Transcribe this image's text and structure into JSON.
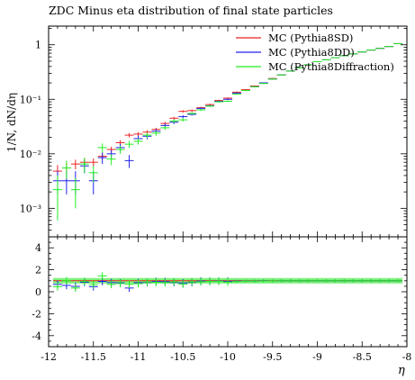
{
  "chart_data": [
    {
      "type": "scatter",
      "title": "ZDC Minus eta distribution of final state particles",
      "ylabel": "1/N, dN/dη",
      "xlabel": "η",
      "xlim": [
        -12,
        -8
      ],
      "ylim": [
        0.0003,
        2.2
      ],
      "yscale": "log",
      "ytick_labels": [
        "1",
        "10⁻¹",
        "10⁻²",
        "10⁻³"
      ],
      "legend_position": "top-right",
      "series": [
        {
          "name": "MC (Pythia8SD)",
          "color": "#ee2222",
          "points": [
            {
              "x": -11.9,
              "y": 0.0048,
              "lo": 0.0035,
              "hi": 0.0062
            },
            {
              "x": -11.8,
              "y": 0.0055,
              "lo": 0.0042,
              "hi": 0.0068
            },
            {
              "x": -11.7,
              "y": 0.0065,
              "lo": 0.0052,
              "hi": 0.0078
            },
            {
              "x": -11.6,
              "y": 0.007,
              "lo": 0.0057,
              "hi": 0.0083
            },
            {
              "x": -11.5,
              "y": 0.007,
              "lo": 0.0058,
              "hi": 0.0082
            },
            {
              "x": -11.4,
              "y": 0.009,
              "lo": 0.0078,
              "hi": 0.0102
            },
            {
              "x": -11.3,
              "y": 0.012,
              "lo": 0.0105,
              "hi": 0.0135
            },
            {
              "x": -11.2,
              "y": 0.016,
              "lo": 0.0142,
              "hi": 0.0178
            },
            {
              "x": -11.1,
              "y": 0.022,
              "lo": 0.02,
              "hi": 0.024
            },
            {
              "x": -11.0,
              "y": 0.023,
              "lo": 0.021,
              "hi": 0.025
            },
            {
              "x": -10.9,
              "y": 0.025,
              "lo": 0.023,
              "hi": 0.027
            },
            {
              "x": -10.8,
              "y": 0.028,
              "lo": 0.026,
              "hi": 0.03
            },
            {
              "x": -10.7,
              "y": 0.036,
              "lo": 0.0335,
              "hi": 0.0385
            },
            {
              "x": -10.6,
              "y": 0.045,
              "lo": 0.0425,
              "hi": 0.0475
            },
            {
              "x": -10.5,
              "y": 0.06,
              "lo": 0.057,
              "hi": 0.063
            },
            {
              "x": -10.4,
              "y": 0.062,
              "lo": 0.059,
              "hi": 0.065
            },
            {
              "x": -10.3,
              "y": 0.07,
              "lo": 0.067,
              "hi": 0.073
            },
            {
              "x": -10.2,
              "y": 0.08,
              "lo": 0.077,
              "hi": 0.083
            },
            {
              "x": -10.1,
              "y": 0.095,
              "lo": 0.092,
              "hi": 0.098
            },
            {
              "x": -10.0,
              "y": 0.105,
              "lo": 0.102,
              "hi": 0.108
            },
            {
              "x": -9.9,
              "y": 0.135,
              "lo": 0.131,
              "hi": 0.139
            },
            {
              "x": -9.8,
              "y": 0.15,
              "lo": 0.146,
              "hi": 0.154
            },
            {
              "x": -9.7,
              "y": 0.175,
              "lo": 0.171,
              "hi": 0.179
            },
            {
              "x": -9.6,
              "y": 0.2,
              "lo": 0.196,
              "hi": 0.204
            },
            {
              "x": -9.5,
              "y": 0.24,
              "lo": 0.235,
              "hi": 0.245
            },
            {
              "x": -9.4,
              "y": 0.28,
              "lo": 0.275,
              "hi": 0.285
            },
            {
              "x": -9.3,
              "y": 0.33,
              "lo": 0.325,
              "hi": 0.335
            },
            {
              "x": -9.2,
              "y": 0.38,
              "lo": 0.375,
              "hi": 0.385
            },
            {
              "x": -9.1,
              "y": 0.43,
              "lo": 0.425,
              "hi": 0.435
            },
            {
              "x": -9.0,
              "y": 0.49,
              "lo": 0.485,
              "hi": 0.495
            },
            {
              "x": -8.9,
              "y": 0.53,
              "lo": 0.525,
              "hi": 0.535
            },
            {
              "x": -8.8,
              "y": 0.58,
              "lo": 0.575,
              "hi": 0.585
            },
            {
              "x": -8.7,
              "y": 0.63,
              "lo": 0.625,
              "hi": 0.635
            },
            {
              "x": -8.6,
              "y": 0.68,
              "lo": 0.675,
              "hi": 0.685
            },
            {
              "x": -8.5,
              "y": 0.74,
              "lo": 0.735,
              "hi": 0.745
            },
            {
              "x": -8.4,
              "y": 0.8,
              "lo": 0.795,
              "hi": 0.805
            },
            {
              "x": -8.3,
              "y": 0.86,
              "lo": 0.855,
              "hi": 0.865
            },
            {
              "x": -8.2,
              "y": 0.93,
              "lo": 0.925,
              "hi": 0.935
            },
            {
              "x": -8.1,
              "y": 1.05,
              "lo": 1.045,
              "hi": 1.055
            }
          ]
        },
        {
          "name": "MC (Pythia8DD)",
          "color": "#2222ee",
          "points": [
            {
              "x": -11.9,
              "y": 0.0032,
              "lo": 0.0018,
              "hi": 0.0048
            },
            {
              "x": -11.8,
              "y": 0.0032,
              "lo": 0.0018,
              "hi": 0.0048
            },
            {
              "x": -11.7,
              "y": 0.0032,
              "lo": 0.0018,
              "hi": 0.0048
            },
            {
              "x": -11.6,
              "y": 0.006,
              "lo": 0.0044,
              "hi": 0.0076
            },
            {
              "x": -11.5,
              "y": 0.0032,
              "lo": 0.0018,
              "hi": 0.0048
            },
            {
              "x": -11.4,
              "y": 0.0085,
              "lo": 0.0065,
              "hi": 0.0105
            },
            {
              "x": -11.3,
              "y": 0.01,
              "lo": 0.0082,
              "hi": 0.0118
            },
            {
              "x": -11.2,
              "y": 0.013,
              "lo": 0.0108,
              "hi": 0.0152
            },
            {
              "x": -11.1,
              "y": 0.0075,
              "lo": 0.0055,
              "hi": 0.0095
            },
            {
              "x": -11.0,
              "y": 0.019,
              "lo": 0.0165,
              "hi": 0.0215
            },
            {
              "x": -10.9,
              "y": 0.021,
              "lo": 0.0185,
              "hi": 0.0235
            },
            {
              "x": -10.8,
              "y": 0.026,
              "lo": 0.0235,
              "hi": 0.0285
            },
            {
              "x": -10.7,
              "y": 0.033,
              "lo": 0.03,
              "hi": 0.036
            },
            {
              "x": -10.6,
              "y": 0.038,
              "lo": 0.035,
              "hi": 0.041
            },
            {
              "x": -10.5,
              "y": 0.048,
              "lo": 0.045,
              "hi": 0.051
            },
            {
              "x": -10.4,
              "y": 0.053,
              "lo": 0.05,
              "hi": 0.056
            },
            {
              "x": -10.3,
              "y": 0.068,
              "lo": 0.065,
              "hi": 0.071
            },
            {
              "x": -10.2,
              "y": 0.076,
              "lo": 0.073,
              "hi": 0.079
            },
            {
              "x": -10.1,
              "y": 0.092,
              "lo": 0.089,
              "hi": 0.095
            },
            {
              "x": -10.0,
              "y": 0.1,
              "lo": 0.097,
              "hi": 0.103
            },
            {
              "x": -9.9,
              "y": 0.13,
              "lo": 0.126,
              "hi": 0.134
            },
            {
              "x": -9.8,
              "y": 0.145,
              "lo": 0.141,
              "hi": 0.149
            },
            {
              "x": -9.7,
              "y": 0.17,
              "lo": 0.166,
              "hi": 0.174
            },
            {
              "x": -9.6,
              "y": 0.2,
              "lo": 0.196,
              "hi": 0.204
            },
            {
              "x": -9.5,
              "y": 0.235,
              "lo": 0.23,
              "hi": 0.24
            },
            {
              "x": -9.4,
              "y": 0.28,
              "lo": 0.275,
              "hi": 0.285
            },
            {
              "x": -9.3,
              "y": 0.33,
              "lo": 0.325,
              "hi": 0.335
            },
            {
              "x": -9.2,
              "y": 0.38,
              "lo": 0.375,
              "hi": 0.385
            },
            {
              "x": -9.1,
              "y": 0.43,
              "lo": 0.425,
              "hi": 0.435
            },
            {
              "x": -9.0,
              "y": 0.49,
              "lo": 0.485,
              "hi": 0.495
            },
            {
              "x": -8.9,
              "y": 0.53,
              "lo": 0.525,
              "hi": 0.535
            },
            {
              "x": -8.8,
              "y": 0.58,
              "lo": 0.575,
              "hi": 0.585
            },
            {
              "x": -8.7,
              "y": 0.63,
              "lo": 0.625,
              "hi": 0.635
            },
            {
              "x": -8.6,
              "y": 0.68,
              "lo": 0.675,
              "hi": 0.685
            },
            {
              "x": -8.5,
              "y": 0.74,
              "lo": 0.735,
              "hi": 0.745
            },
            {
              "x": -8.4,
              "y": 0.8,
              "lo": 0.795,
              "hi": 0.805
            },
            {
              "x": -8.3,
              "y": 0.86,
              "lo": 0.855,
              "hi": 0.865
            },
            {
              "x": -8.2,
              "y": 0.93,
              "lo": 0.925,
              "hi": 0.935
            },
            {
              "x": -8.1,
              "y": 1.05,
              "lo": 1.045,
              "hi": 1.055
            }
          ]
        },
        {
          "name": "MC (Pythia8Diffraction)",
          "color": "#22ee22",
          "points": [
            {
              "x": -11.9,
              "y": 0.0022,
              "lo": 0.0006,
              "hi": 0.004
            },
            {
              "x": -11.8,
              "y": 0.0055,
              "lo": 0.0035,
              "hi": 0.0075
            },
            {
              "x": -11.7,
              "y": 0.0022,
              "lo": 0.001,
              "hi": 0.0036
            },
            {
              "x": -11.6,
              "y": 0.0065,
              "lo": 0.0045,
              "hi": 0.0085
            },
            {
              "x": -11.5,
              "y": 0.0045,
              "lo": 0.003,
              "hi": 0.006
            },
            {
              "x": -11.4,
              "y": 0.013,
              "lo": 0.0105,
              "hi": 0.0155
            },
            {
              "x": -11.3,
              "y": 0.008,
              "lo": 0.0062,
              "hi": 0.0098
            },
            {
              "x": -11.2,
              "y": 0.012,
              "lo": 0.01,
              "hi": 0.014
            },
            {
              "x": -11.1,
              "y": 0.015,
              "lo": 0.0128,
              "hi": 0.0172
            },
            {
              "x": -11.0,
              "y": 0.017,
              "lo": 0.0148,
              "hi": 0.0192
            },
            {
              "x": -10.9,
              "y": 0.022,
              "lo": 0.0195,
              "hi": 0.0245
            },
            {
              "x": -10.8,
              "y": 0.024,
              "lo": 0.0215,
              "hi": 0.0265
            },
            {
              "x": -10.7,
              "y": 0.03,
              "lo": 0.0272,
              "hi": 0.0328
            },
            {
              "x": -10.6,
              "y": 0.04,
              "lo": 0.037,
              "hi": 0.043
            },
            {
              "x": -10.5,
              "y": 0.042,
              "lo": 0.039,
              "hi": 0.045
            },
            {
              "x": -10.4,
              "y": 0.055,
              "lo": 0.052,
              "hi": 0.058
            },
            {
              "x": -10.3,
              "y": 0.064,
              "lo": 0.061,
              "hi": 0.067
            },
            {
              "x": -10.2,
              "y": 0.075,
              "lo": 0.072,
              "hi": 0.078
            },
            {
              "x": -10.1,
              "y": 0.09,
              "lo": 0.087,
              "hi": 0.093
            },
            {
              "x": -10.0,
              "y": 0.092,
              "lo": 0.089,
              "hi": 0.095
            },
            {
              "x": -9.9,
              "y": 0.125,
              "lo": 0.121,
              "hi": 0.129
            },
            {
              "x": -9.8,
              "y": 0.145,
              "lo": 0.141,
              "hi": 0.149
            },
            {
              "x": -9.7,
              "y": 0.17,
              "lo": 0.166,
              "hi": 0.174
            },
            {
              "x": -9.6,
              "y": 0.195,
              "lo": 0.191,
              "hi": 0.199
            },
            {
              "x": -9.5,
              "y": 0.235,
              "lo": 0.23,
              "hi": 0.24
            },
            {
              "x": -9.4,
              "y": 0.28,
              "lo": 0.275,
              "hi": 0.285
            },
            {
              "x": -9.3,
              "y": 0.33,
              "lo": 0.325,
              "hi": 0.335
            },
            {
              "x": -9.2,
              "y": 0.38,
              "lo": 0.375,
              "hi": 0.385
            },
            {
              "x": -9.1,
              "y": 0.43,
              "lo": 0.425,
              "hi": 0.435
            },
            {
              "x": -9.0,
              "y": 0.49,
              "lo": 0.485,
              "hi": 0.495
            },
            {
              "x": -8.9,
              "y": 0.53,
              "lo": 0.525,
              "hi": 0.535
            },
            {
              "x": -8.8,
              "y": 0.58,
              "lo": 0.575,
              "hi": 0.585
            },
            {
              "x": -8.7,
              "y": 0.63,
              "lo": 0.625,
              "hi": 0.635
            },
            {
              "x": -8.6,
              "y": 0.68,
              "lo": 0.675,
              "hi": 0.685
            },
            {
              "x": -8.5,
              "y": 0.74,
              "lo": 0.735,
              "hi": 0.745
            },
            {
              "x": -8.4,
              "y": 0.8,
              "lo": 0.795,
              "hi": 0.805
            },
            {
              "x": -8.3,
              "y": 0.86,
              "lo": 0.855,
              "hi": 0.865
            },
            {
              "x": -8.2,
              "y": 0.93,
              "lo": 0.925,
              "hi": 0.935
            },
            {
              "x": -8.1,
              "y": 1.05,
              "lo": 1.045,
              "hi": 1.055
            }
          ]
        }
      ]
    },
    {
      "type": "scatter",
      "xlabel": "η",
      "xlim": [
        -12,
        -8
      ],
      "ylim": [
        -5,
        5
      ],
      "ytick_labels": [
        "4",
        "2",
        "0",
        "-2",
        "-4"
      ],
      "xtick_labels": [
        "-12",
        "-11.5",
        "-11",
        "-10.5",
        "-10",
        "-9.5",
        "-9",
        "-8.5",
        "-8"
      ],
      "series": [
        {
          "name": "MC (Pythia8SD)",
          "color": "#ee2222",
          "band_half_width": 0.25,
          "values": [
            1,
            1,
            1,
            1,
            1,
            1,
            1,
            1,
            1,
            1,
            1,
            1,
            1,
            1,
            1,
            1,
            1,
            1,
            1,
            1,
            1,
            1,
            1,
            1,
            1,
            1,
            1,
            1,
            1,
            1,
            1,
            1,
            1,
            1,
            1,
            1,
            1,
            1,
            1
          ]
        },
        {
          "name": "MC (Pythia8DD)",
          "color": "#2222ee",
          "values": [
            0.67,
            0.58,
            0.49,
            0.86,
            0.46,
            0.94,
            0.83,
            0.81,
            0.34,
            0.83,
            0.84,
            0.93,
            0.92,
            0.84,
            0.8,
            0.85,
            0.97,
            0.95,
            0.97,
            0.95,
            0.96,
            0.97,
            0.97,
            1.0,
            0.98,
            1.0,
            1.0,
            1.0,
            1.0,
            1.0,
            1.0,
            1.0,
            1.0,
            1.0,
            1.0,
            1.0,
            1.0,
            1.0,
            1.0
          ]
        },
        {
          "name": "MC (Pythia8Diffraction)",
          "color": "#22ee22",
          "values": [
            0.46,
            1.0,
            0.34,
            0.93,
            0.64,
            1.44,
            0.67,
            0.75,
            0.68,
            0.74,
            0.88,
            0.86,
            0.83,
            0.89,
            0.7,
            0.89,
            0.91,
            0.94,
            0.95,
            0.88,
            0.93,
            0.97,
            0.97,
            0.98,
            0.98,
            1.0,
            1.0,
            1.0,
            1.0,
            1.0,
            1.0,
            1.0,
            1.0,
            1.0,
            1.0,
            1.0,
            1.0,
            1.0,
            1.0
          ]
        }
      ]
    }
  ]
}
